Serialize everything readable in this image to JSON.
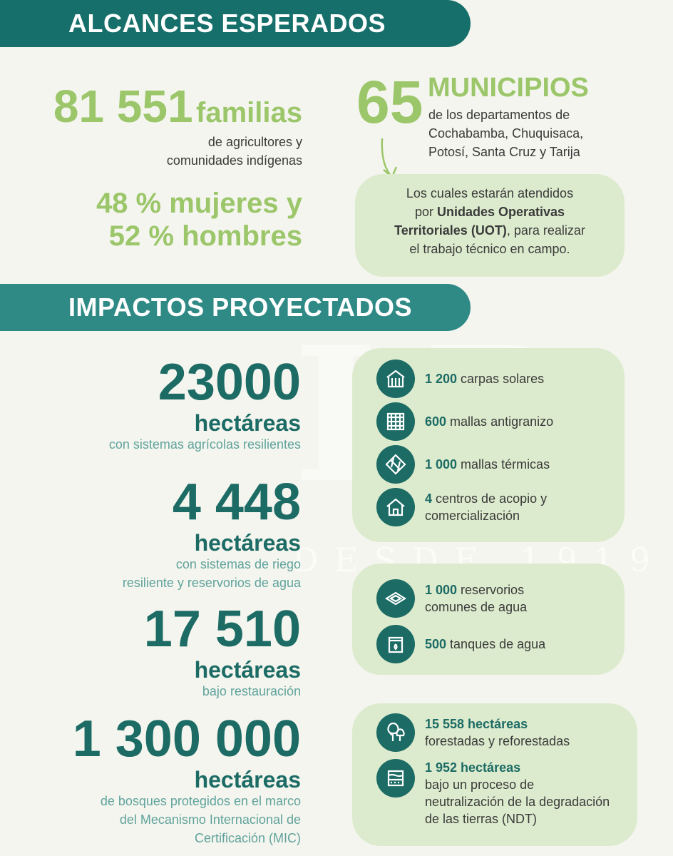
{
  "alcances": {
    "title": "ALCANCES ESPERADOS",
    "familias_num": "81 551",
    "familias_label": "familias",
    "familias_desc": [
      "de agricultores y",
      "comunidades indígenas"
    ],
    "genero": [
      "48 % mujeres y",
      "52 % hombres"
    ],
    "municipios_num": "65",
    "municipios_label": "MUNICIPIOS",
    "municipios_desc": [
      "de los departamentos de",
      "Cochabamba, Chuquisaca,",
      "Potosí, Santa Cruz y Tarija"
    ],
    "uot": {
      "line1": "Los cuales estarán atendidos",
      "line2_pre": "por ",
      "line2_bold": "Unidades Operativas",
      "line3_bold": "Territoriales (UOT)",
      "line3_post": ", para realizar",
      "line4": "el trabajo técnico en campo."
    }
  },
  "impactos": {
    "title": "IMPACTOS PROYECTADOS",
    "stats": [
      {
        "num": "23000",
        "unit": "hectáreas",
        "desc": [
          "con sistemas agrícolas resilientes"
        ]
      },
      {
        "num": "4 448",
        "unit": "hectáreas",
        "desc": [
          "con sistemas de riego",
          "resiliente y reservorios de agua"
        ]
      },
      {
        "num": "17 510",
        "unit": "hectáreas",
        "desc": [
          "bajo restauración"
        ]
      },
      {
        "num": "1 300 000",
        "unit": "hectáreas",
        "desc": [
          "de bosques protegidos en el marco",
          "del Mecanismo Internacional de",
          "Certificación (MIC)"
        ]
      }
    ],
    "box1": [
      {
        "icon": "greenhouse-icon",
        "num": "1 200",
        "text": " carpas solares"
      },
      {
        "icon": "hail-net-icon",
        "num": "600",
        "text": " mallas antigranizo"
      },
      {
        "icon": "thermal-mesh-icon",
        "num": "1 000",
        "text": " mallas térmicas"
      },
      {
        "icon": "warehouse-icon",
        "num": "4",
        "text": " centros de acopio y",
        "text2": "comercialización"
      }
    ],
    "box2": [
      {
        "icon": "reservoir-icon",
        "num": "1 000",
        "text": " reservorios",
        "text2": "comunes de agua"
      },
      {
        "icon": "water-tank-icon",
        "num": "500",
        "text": " tanques de agua"
      }
    ],
    "box3": [
      {
        "icon": "trees-icon",
        "num": "15 558 hectáreas",
        "text2": "forestadas y reforestadas"
      },
      {
        "icon": "soil-layers-icon",
        "num": "1 952 hectáreas",
        "text2": "bajo un proceso de",
        "text3": "neutralización de la degradación",
        "text4": "de las tierras (NDT)"
      }
    ]
  },
  "watermark": {
    "logo": "LP",
    "text": "DESDE 1919"
  },
  "colors": {
    "banner": "#166f6a",
    "light_green": "#9cc66a",
    "dark_teal": "#1c6b65",
    "box": "#dcebcd",
    "background": "#f4f5ee"
  }
}
